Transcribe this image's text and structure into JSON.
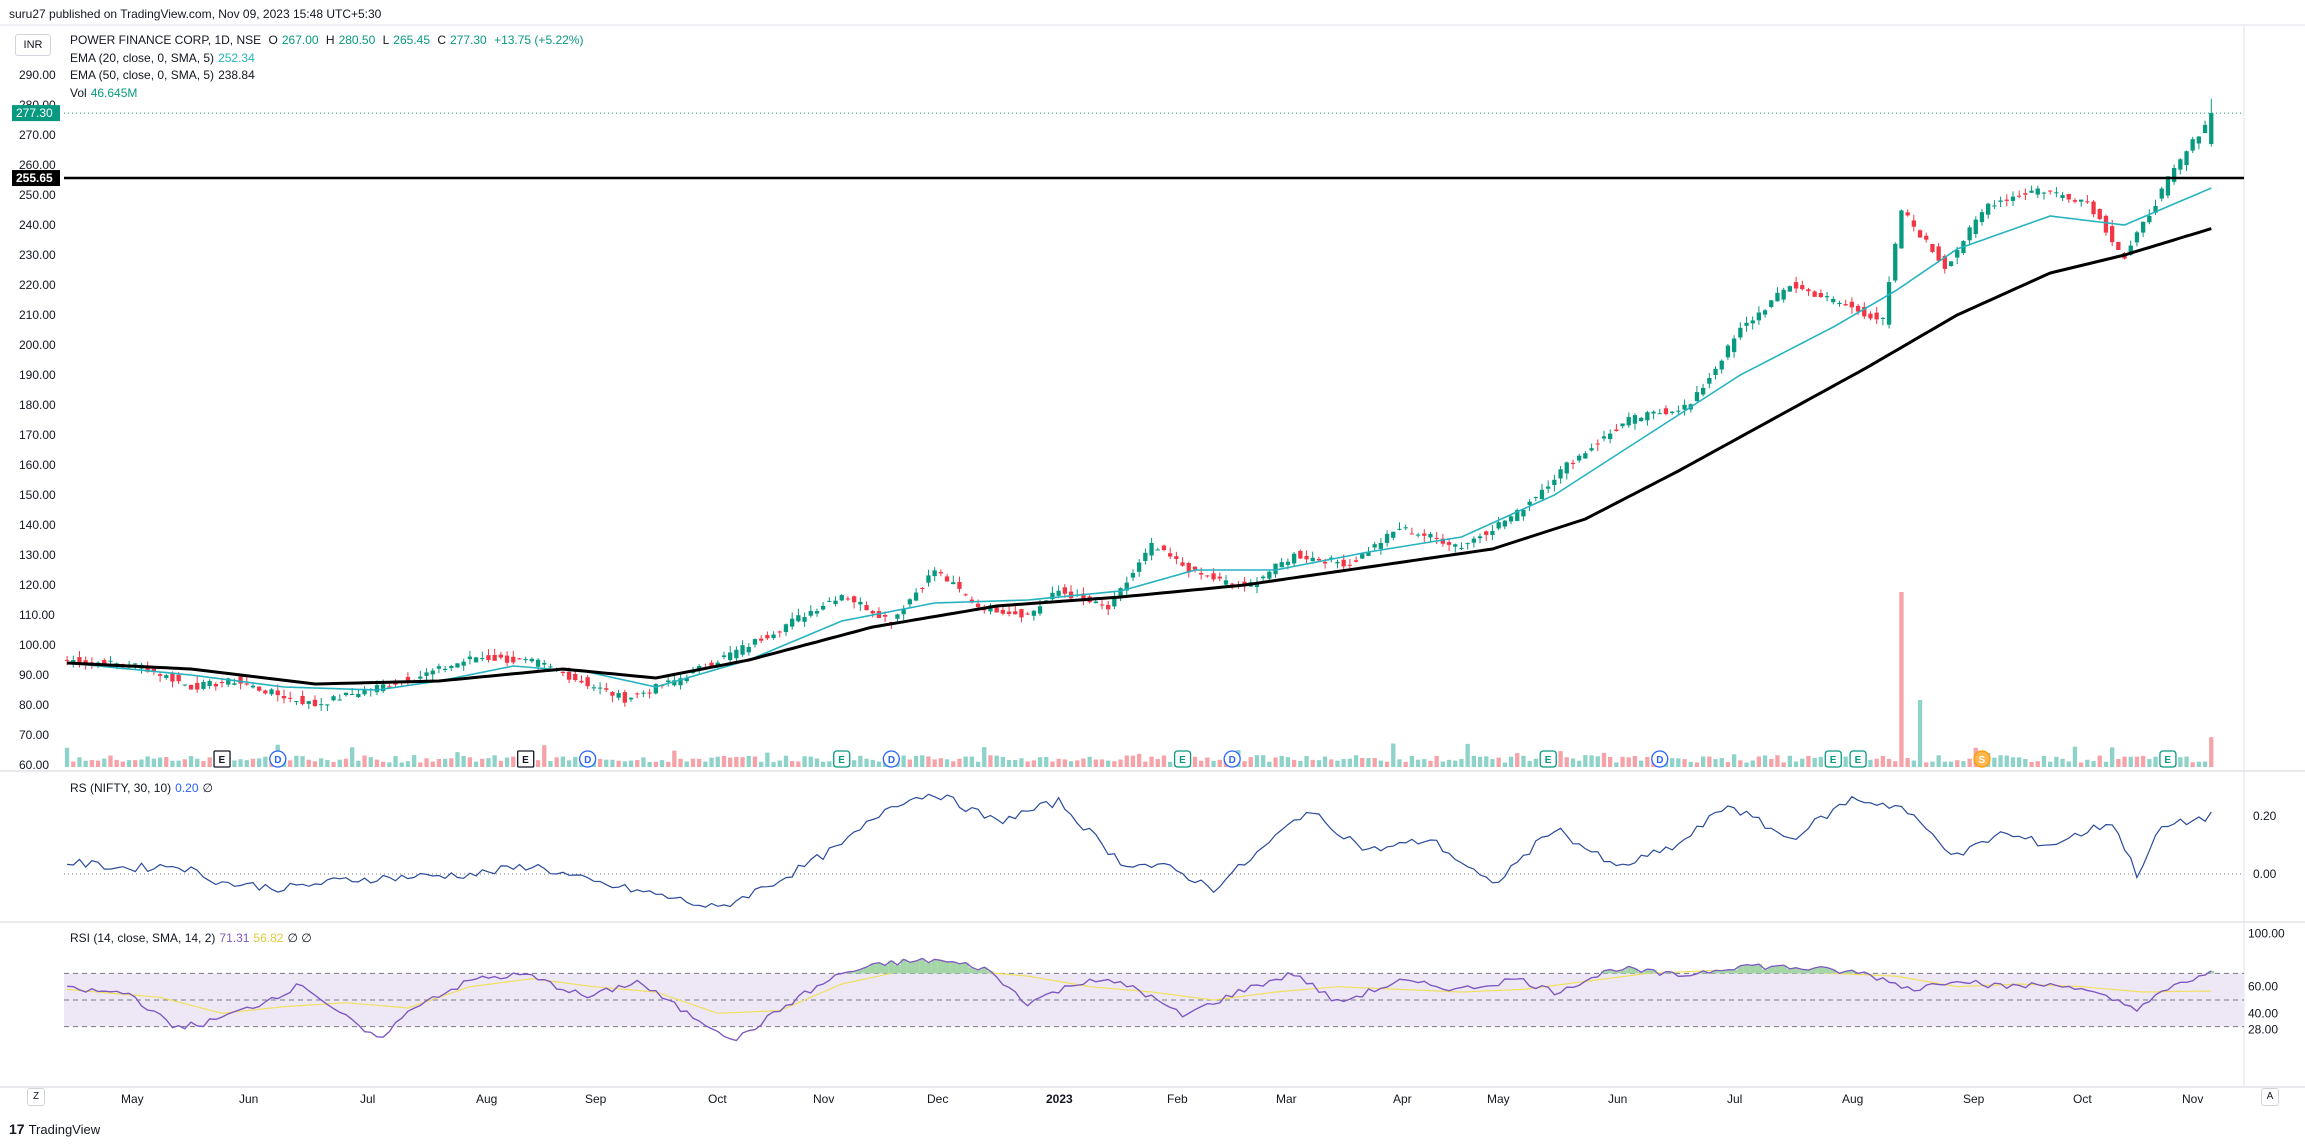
{
  "header": {
    "published_by": "suru27 published on TradingView.com, Nov 09, 2023 15:48 UTC+5:30"
  },
  "legend": {
    "symbol": "POWER FINANCE CORP, 1D, NSE",
    "open_label": "O",
    "open": "267.00",
    "high_label": "H",
    "high": "280.50",
    "low_label": "L",
    "low": "265.45",
    "close_label": "C",
    "close": "277.30",
    "change": "+13.75 (+5.22%)",
    "ema20_label": "EMA (20, close, 0, SMA, 5)",
    "ema20_value": "252.34",
    "ema50_label": "EMA (50, close, 0, SMA, 5)",
    "ema50_value": "238.84",
    "vol_label": "Vol",
    "vol_value": "46.645M"
  },
  "rs_legend": {
    "label": "RS (NIFTY, 30, 10)",
    "value": "0.20",
    "extra": "∅"
  },
  "rsi_legend": {
    "label": "RSI (14, close, SMA, 14, 2)",
    "value": "71.31",
    "ma_value": "56.82",
    "extra": "∅ ∅"
  },
  "currency": "INR",
  "brand": "TradingView",
  "buttons": {
    "left": "Z",
    "right": "A"
  },
  "colors": {
    "up": "#089981",
    "down": "#f23645",
    "ema20": "#26b3c0",
    "ema50": "#000000",
    "rs": "#2a4a9c",
    "rsi": "#7e57c2",
    "rsi_ma": "#f0e060",
    "rsi_band": "#ede7f6"
  },
  "chart_data": [
    {
      "type": "candlestick",
      "title": "POWER FINANCE CORP, 1D, NSE",
      "ylim": [
        60,
        290
      ],
      "yticks": [
        "290.00",
        "280.00",
        "270.00",
        "260.00",
        "250.00",
        "240.00",
        "230.00",
        "220.00",
        "210.00",
        "200.00",
        "190.00",
        "180.00",
        "170.00",
        "160.00",
        "150.00",
        "140.00",
        "130.00",
        "120.00",
        "110.00",
        "100.00",
        "90.00",
        "80.00",
        "70.00",
        "60.00"
      ],
      "xticks": [
        "May",
        "Jun",
        "Jul",
        "Aug",
        "Sep",
        "Oct",
        "Nov",
        "Dec",
        "2023",
        "Feb",
        "Mar",
        "Apr",
        "May",
        "Jun",
        "Jul",
        "Aug",
        "Sep",
        "Oct",
        "Nov"
      ],
      "last_price_label": "277.30",
      "horizontal_line": {
        "value": 255.65,
        "label": "255.65"
      },
      "price_path": [
        [
          0,
          95
        ],
        [
          12,
          93
        ],
        [
          20,
          86
        ],
        [
          27,
          88
        ],
        [
          33,
          84
        ],
        [
          40,
          80
        ],
        [
          48,
          85
        ],
        [
          56,
          89
        ],
        [
          66,
          96
        ],
        [
          76,
          94
        ],
        [
          84,
          87
        ],
        [
          90,
          82
        ],
        [
          98,
          88
        ],
        [
          110,
          100
        ],
        [
          125,
          117
        ],
        [
          133,
          108
        ],
        [
          140,
          125
        ],
        [
          147,
          113
        ],
        [
          155,
          110
        ],
        [
          160,
          118
        ],
        [
          168,
          112
        ],
        [
          175,
          133
        ],
        [
          182,
          124
        ],
        [
          190,
          119
        ],
        [
          198,
          130
        ],
        [
          207,
          127
        ],
        [
          215,
          139
        ],
        [
          225,
          133
        ],
        [
          234,
          144
        ],
        [
          242,
          160
        ],
        [
          252,
          175
        ],
        [
          262,
          180
        ],
        [
          270,
          205
        ],
        [
          278,
          220
        ],
        [
          286,
          214
        ],
        [
          293,
          208
        ],
        [
          296,
          245
        ],
        [
          303,
          226
        ],
        [
          310,
          247
        ],
        [
          318,
          252
        ],
        [
          326,
          248
        ],
        [
          332,
          229
        ],
        [
          339,
          255
        ],
        [
          346,
          277
        ]
      ],
      "ema20_path": [
        [
          0,
          94
        ],
        [
          20,
          90
        ],
        [
          35,
          86
        ],
        [
          50,
          85
        ],
        [
          60,
          88
        ],
        [
          72,
          93
        ],
        [
          84,
          91
        ],
        [
          95,
          86
        ],
        [
          110,
          95
        ],
        [
          125,
          108
        ],
        [
          140,
          114
        ],
        [
          155,
          115
        ],
        [
          170,
          118
        ],
        [
          182,
          125
        ],
        [
          195,
          125
        ],
        [
          210,
          131
        ],
        [
          225,
          136
        ],
        [
          240,
          150
        ],
        [
          255,
          170
        ],
        [
          270,
          190
        ],
        [
          285,
          206
        ],
        [
          295,
          218
        ],
        [
          305,
          232
        ],
        [
          320,
          243
        ],
        [
          332,
          240
        ],
        [
          346,
          252.3
        ]
      ],
      "ema50_path": [
        [
          0,
          94
        ],
        [
          20,
          92
        ],
        [
          40,
          87
        ],
        [
          60,
          88
        ],
        [
          80,
          92
        ],
        [
          95,
          89
        ],
        [
          110,
          95
        ],
        [
          130,
          106
        ],
        [
          150,
          113
        ],
        [
          170,
          116
        ],
        [
          190,
          120
        ],
        [
          210,
          126
        ],
        [
          230,
          132
        ],
        [
          245,
          142
        ],
        [
          260,
          158
        ],
        [
          275,
          175
        ],
        [
          290,
          192
        ],
        [
          305,
          210
        ],
        [
          320,
          224
        ],
        [
          332,
          230
        ],
        [
          346,
          238.8
        ]
      ],
      "volume": {
        "max": 235,
        "spike": {
          "index": 296,
          "value": 235,
          "dir": "down"
        },
        "second": {
          "index": 299,
          "value": 90,
          "dir": "up"
        }
      },
      "events": [
        {
          "type": "E",
          "i": 25,
          "style": "square"
        },
        {
          "type": "D",
          "i": 34,
          "style": "circle-blue"
        },
        {
          "type": "E",
          "i": 74,
          "style": "square"
        },
        {
          "type": "D",
          "i": 84,
          "style": "circle-blue"
        },
        {
          "type": "E",
          "i": 125,
          "style": "teal"
        },
        {
          "type": "D",
          "i": 133,
          "style": "circle-blue"
        },
        {
          "type": "E",
          "i": 180,
          "style": "teal"
        },
        {
          "type": "D",
          "i": 188,
          "style": "circle-blue"
        },
        {
          "type": "E",
          "i": 239,
          "style": "teal"
        },
        {
          "type": "D",
          "i": 257,
          "style": "circle-blue"
        },
        {
          "type": "E",
          "i": 285,
          "style": "teal"
        },
        {
          "type": "E",
          "i": 289,
          "style": "teal"
        },
        {
          "type": "S",
          "i": 309,
          "style": "orange"
        },
        {
          "type": "E",
          "i": 339,
          "style": "teal"
        }
      ]
    },
    {
      "type": "line",
      "title": "RS (NIFTY, 30, 10)",
      "ylim": [
        -0.15,
        0.3
      ],
      "yticks": [
        "0.20",
        "0.00"
      ],
      "path": [
        [
          0,
          0.04
        ],
        [
          10,
          0.02
        ],
        [
          18,
          0.03
        ],
        [
          25,
          -0.03
        ],
        [
          35,
          -0.05
        ],
        [
          45,
          -0.02
        ],
        [
          55,
          -0.01
        ],
        [
          66,
          0.0
        ],
        [
          75,
          0.03
        ],
        [
          85,
          -0.03
        ],
        [
          95,
          -0.07
        ],
        [
          105,
          -0.12
        ],
        [
          115,
          -0.02
        ],
        [
          125,
          0.1
        ],
        [
          133,
          0.24
        ],
        [
          140,
          0.28
        ],
        [
          150,
          0.18
        ],
        [
          160,
          0.25
        ],
        [
          170,
          0.04
        ],
        [
          178,
          0.02
        ],
        [
          185,
          -0.05
        ],
        [
          192,
          0.07
        ],
        [
          200,
          0.22
        ],
        [
          210,
          0.08
        ],
        [
          220,
          0.12
        ],
        [
          230,
          -0.04
        ],
        [
          240,
          0.16
        ],
        [
          250,
          0.02
        ],
        [
          260,
          0.1
        ],
        [
          268,
          0.24
        ],
        [
          278,
          0.12
        ],
        [
          288,
          0.26
        ],
        [
          296,
          0.23
        ],
        [
          305,
          0.06
        ],
        [
          312,
          0.14
        ],
        [
          320,
          0.1
        ],
        [
          330,
          0.18
        ],
        [
          334,
          0.0
        ],
        [
          338,
          0.16
        ],
        [
          346,
          0.2
        ]
      ]
    },
    {
      "type": "line",
      "title": "RSI (14, close, SMA, 14, 2)",
      "ylim": [
        15,
        100
      ],
      "yticks": [
        "100.00",
        "60.00",
        "40.00",
        "28.00"
      ],
      "bands": [
        70,
        50,
        30
      ],
      "rsi_path": [
        [
          0,
          58
        ],
        [
          10,
          55
        ],
        [
          17,
          30
        ],
        [
          22,
          32
        ],
        [
          30,
          45
        ],
        [
          38,
          62
        ],
        [
          44,
          40
        ],
        [
          50,
          20
        ],
        [
          57,
          48
        ],
        [
          66,
          66
        ],
        [
          74,
          69
        ],
        [
          84,
          52
        ],
        [
          92,
          64
        ],
        [
          100,
          40
        ],
        [
          108,
          20
        ],
        [
          118,
          52
        ],
        [
          125,
          70
        ],
        [
          133,
          78
        ],
        [
          140,
          80
        ],
        [
          148,
          74
        ],
        [
          155,
          48
        ],
        [
          165,
          66
        ],
        [
          172,
          60
        ],
        [
          180,
          38
        ],
        [
          190,
          58
        ],
        [
          198,
          70
        ],
        [
          205,
          48
        ],
        [
          215,
          64
        ],
        [
          225,
          58
        ],
        [
          234,
          66
        ],
        [
          240,
          56
        ],
        [
          250,
          74
        ],
        [
          260,
          68
        ],
        [
          270,
          76
        ],
        [
          280,
          74
        ],
        [
          290,
          70
        ],
        [
          298,
          58
        ],
        [
          305,
          66
        ],
        [
          312,
          60
        ],
        [
          322,
          62
        ],
        [
          334,
          44
        ],
        [
          340,
          60
        ],
        [
          346,
          71.3
        ]
      ],
      "ma_path": [
        [
          0,
          58
        ],
        [
          15,
          52
        ],
        [
          25,
          40
        ],
        [
          35,
          45
        ],
        [
          45,
          48
        ],
        [
          55,
          44
        ],
        [
          65,
          60
        ],
        [
          75,
          66
        ],
        [
          85,
          60
        ],
        [
          95,
          56
        ],
        [
          105,
          40
        ],
        [
          115,
          42
        ],
        [
          125,
          62
        ],
        [
          135,
          72
        ],
        [
          145,
          72
        ],
        [
          155,
          68
        ],
        [
          165,
          60
        ],
        [
          175,
          56
        ],
        [
          185,
          50
        ],
        [
          195,
          56
        ],
        [
          205,
          60
        ],
        [
          215,
          58
        ],
        [
          225,
          56
        ],
        [
          235,
          58
        ],
        [
          245,
          64
        ],
        [
          255,
          70
        ],
        [
          265,
          72
        ],
        [
          275,
          72
        ],
        [
          285,
          70
        ],
        [
          295,
          68
        ],
        [
          305,
          60
        ],
        [
          315,
          62
        ],
        [
          325,
          60
        ],
        [
          335,
          56
        ],
        [
          346,
          56.8
        ]
      ]
    }
  ]
}
